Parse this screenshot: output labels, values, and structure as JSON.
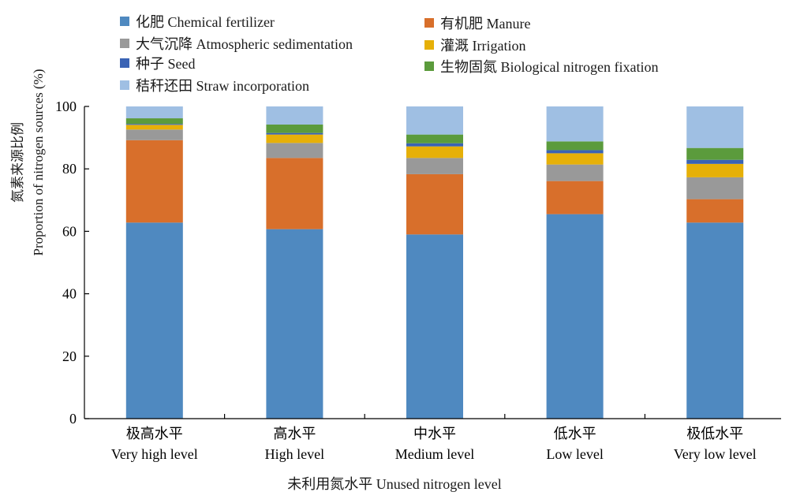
{
  "chart_data": {
    "type": "bar",
    "stacked": true,
    "categories": [
      {
        "zh": "极高水平",
        "en": "Very high level"
      },
      {
        "zh": "高水平",
        "en": "High level"
      },
      {
        "zh": "中水平",
        "en": "Medium level"
      },
      {
        "zh": "低水平",
        "en": "Low level"
      },
      {
        "zh": "极低水平",
        "en": "Very low level"
      }
    ],
    "series": [
      {
        "name": "化肥 Chemical fertilizer",
        "color": "#4f89c0",
        "values": [
          62.8,
          60.7,
          59.0,
          65.5,
          62.8
        ]
      },
      {
        "name": "有机肥 Manure",
        "color": "#d86f2b",
        "values": [
          26.4,
          22.8,
          19.3,
          10.6,
          7.5
        ]
      },
      {
        "name": "大气沉降 Atmospheric sedimentation",
        "color": "#999999",
        "values": [
          3.4,
          4.8,
          5.2,
          5.3,
          7.0
        ]
      },
      {
        "name": "灌溉 Irrigation",
        "color": "#e6b008",
        "values": [
          1.5,
          2.7,
          3.7,
          3.6,
          4.3
        ]
      },
      {
        "name": "种子 Seed",
        "color": "#3a63b4",
        "values": [
          0.3,
          0.5,
          1.0,
          1.0,
          1.3
        ]
      },
      {
        "name": "生物固氮 Biological nitrogen fixation",
        "color": "#5b9b3c",
        "values": [
          1.8,
          2.7,
          2.8,
          2.8,
          3.8
        ]
      },
      {
        "name": "秸秆还田 Straw incorporation",
        "color": "#9fbfe3",
        "values": [
          3.8,
          5.8,
          9.0,
          11.2,
          13.3
        ]
      }
    ],
    "ylim": [
      0,
      100
    ],
    "yticks": [
      0,
      20,
      40,
      60,
      80,
      100
    ],
    "ylabel_zh": "氮素来源比例",
    "ylabel_en": "Proportion of nitrogen sources (%)",
    "xlabel": "未利用氮水平 Unused nitrogen level",
    "legend_position": "top"
  }
}
